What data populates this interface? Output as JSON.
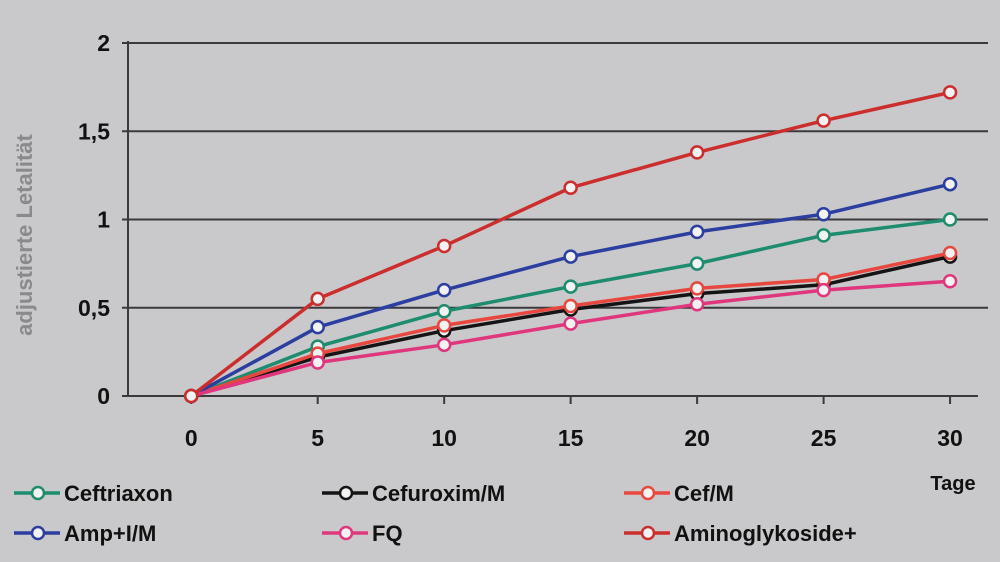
{
  "chart_data": {
    "type": "line",
    "ylabel": "adjustierte Letalität",
    "xunit": "Tage",
    "x": [
      0,
      5,
      10,
      15,
      20,
      25,
      30
    ],
    "xticks": [
      "0",
      "5",
      "10",
      "15",
      "20",
      "25",
      "30"
    ],
    "yticks": [
      "0",
      "0,5",
      "1",
      "1,5",
      "2"
    ],
    "ytick_values": [
      0,
      0.5,
      1,
      1.5,
      2
    ],
    "xlim": [
      -2.5,
      31.5
    ],
    "ylim": [
      0,
      2
    ],
    "grid": true,
    "legend_position": "bottom",
    "series": [
      {
        "name": "Ceftriaxon",
        "color": "#1e8c6e",
        "values": [
          0,
          0.28,
          0.48,
          0.62,
          0.75,
          0.91,
          1.0
        ]
      },
      {
        "name": "Cefuroxim/M",
        "color": "#141414",
        "values": [
          0,
          0.22,
          0.37,
          0.49,
          0.58,
          0.63,
          0.79
        ]
      },
      {
        "name": "Cef/M",
        "color": "#e8473f",
        "values": [
          0,
          0.24,
          0.4,
          0.51,
          0.61,
          0.66,
          0.81
        ]
      },
      {
        "name": "Amp+I/M",
        "color": "#2c3fa0",
        "values": [
          0,
          0.39,
          0.6,
          0.79,
          0.93,
          1.03,
          1.2
        ]
      },
      {
        "name": "FQ",
        "color": "#e0367e",
        "values": [
          0,
          0.19,
          0.29,
          0.41,
          0.52,
          0.6,
          0.65
        ]
      },
      {
        "name": "Aminoglykoside+",
        "color": "#cc2e2e",
        "values": [
          0,
          0.55,
          0.85,
          1.18,
          1.38,
          1.56,
          1.72
        ]
      }
    ]
  }
}
